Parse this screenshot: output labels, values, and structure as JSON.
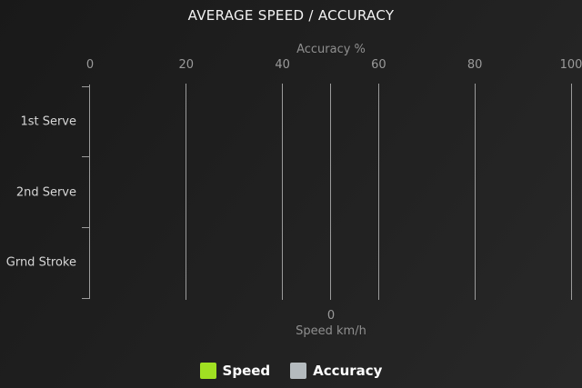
{
  "chart": {
    "title": "AVERAGE SPEED / ACCURACY",
    "top_axis": {
      "title": "Accuracy %",
      "tick_labels": [
        "0",
        "20",
        "40",
        "60",
        "80",
        "100"
      ]
    },
    "bottom_axis": {
      "title": "Speed km/h",
      "tick_labels": [
        "0"
      ]
    },
    "categories": [
      "1st Serve",
      "2nd Serve",
      "Grnd Stroke"
    ],
    "legend": {
      "items": [
        {
          "label": "Speed",
          "color": "#a0e022"
        },
        {
          "label": "Accuracy",
          "color": "#b4babe"
        }
      ]
    },
    "colors": {
      "background_start": "#191919",
      "background_end": "#282828",
      "grid": "#9b9b9b",
      "tick_text": "#9a9a9a",
      "axis_title_text": "#8f8f8f",
      "category_text": "#d6d6d6",
      "title_text": "#f2f2f2"
    }
  },
  "chart_data": {
    "type": "bar",
    "orientation": "horizontal",
    "title": "AVERAGE SPEED / ACCURACY",
    "categories": [
      "1st Serve",
      "2nd Serve",
      "Grnd Stroke"
    ],
    "series": [
      {
        "name": "Speed",
        "unit": "km/h",
        "axis": "bottom",
        "color": "#a0e022",
        "values": [
          0,
          0,
          0
        ]
      },
      {
        "name": "Accuracy",
        "unit": "%",
        "axis": "top",
        "color": "#b4babe",
        "values": [
          0,
          0,
          0
        ]
      }
    ],
    "top_axis": {
      "label": "Accuracy %",
      "range": [
        0,
        100
      ],
      "ticks": [
        0,
        20,
        40,
        60,
        80,
        100
      ]
    },
    "bottom_axis": {
      "label": "Speed km/h",
      "ticks": [
        0
      ]
    },
    "legend_position": "bottom",
    "grid": true
  }
}
